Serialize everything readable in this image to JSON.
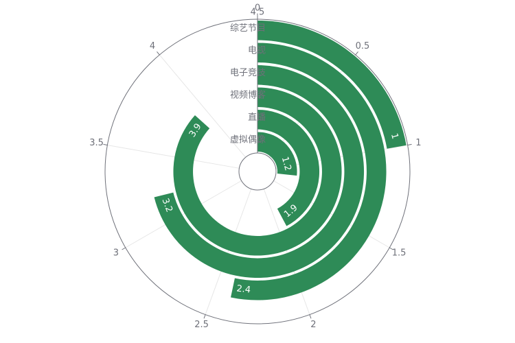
{
  "chart_data": {
    "type": "polar-bar",
    "angle_axis": {
      "min": 0,
      "max": 4.5,
      "ticks": [
        0,
        0.5,
        1,
        1.5,
        2,
        2.5,
        3,
        3.5,
        4,
        4.5
      ],
      "direction": "clockwise",
      "start": "top"
    },
    "categories": [
      "虚拟偶像",
      "直播",
      "视频博客",
      "电子竞技",
      "电视",
      "综艺节目"
    ],
    "values": [
      1.2,
      1.9,
      3.9,
      3.2,
      2.4,
      1
    ],
    "bar_color": "#2e8b57",
    "grid": true
  }
}
